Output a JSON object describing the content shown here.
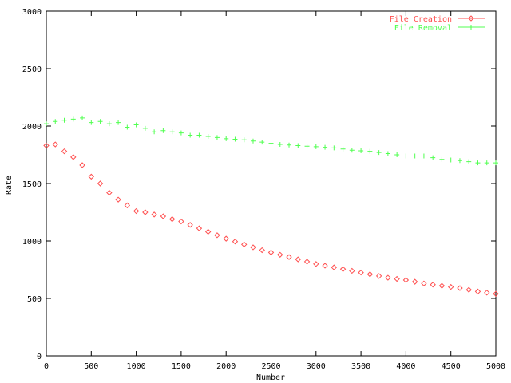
{
  "chart_data": {
    "type": "scatter",
    "title": "",
    "xlabel": "Number",
    "ylabel": "Rate",
    "xlim": [
      0,
      5000
    ],
    "ylim": [
      0,
      3000
    ],
    "xticks": [
      "0",
      "500",
      "1000",
      "1500",
      "2000",
      "2500",
      "3000",
      "3500",
      "4000",
      "4500",
      "5000"
    ],
    "yticks": [
      "0",
      "500",
      "1000",
      "1500",
      "2000",
      "2500",
      "3000"
    ],
    "legend_position": "top-right",
    "x": [
      0,
      100,
      200,
      300,
      400,
      500,
      600,
      700,
      800,
      900,
      1000,
      1100,
      1200,
      1300,
      1400,
      1500,
      1600,
      1700,
      1800,
      1900,
      2000,
      2100,
      2200,
      2300,
      2400,
      2500,
      2600,
      2700,
      2800,
      2900,
      3000,
      3100,
      3200,
      3300,
      3400,
      3500,
      3600,
      3700,
      3800,
      3900,
      4000,
      4100,
      4200,
      4300,
      4400,
      4500,
      4600,
      4700,
      4800,
      4900,
      5000
    ],
    "series": [
      {
        "name": "File Creation",
        "color": "#ff5050",
        "marker": "diamond",
        "values": [
          1830,
          1840,
          1780,
          1730,
          1660,
          1560,
          1500,
          1420,
          1360,
          1310,
          1260,
          1250,
          1230,
          1215,
          1190,
          1170,
          1140,
          1110,
          1080,
          1050,
          1020,
          995,
          970,
          945,
          920,
          900,
          880,
          860,
          840,
          820,
          800,
          785,
          770,
          755,
          740,
          725,
          710,
          695,
          680,
          670,
          660,
          645,
          630,
          620,
          610,
          600,
          590,
          575,
          560,
          550,
          540
        ]
      },
      {
        "name": "File Removal",
        "color": "#50ff50",
        "marker": "plus",
        "values": [
          2020,
          2040,
          2050,
          2060,
          2070,
          2030,
          2040,
          2020,
          2030,
          1990,
          2010,
          1980,
          1950,
          1960,
          1950,
          1940,
          1920,
          1920,
          1910,
          1900,
          1890,
          1885,
          1880,
          1870,
          1860,
          1850,
          1840,
          1835,
          1830,
          1825,
          1820,
          1815,
          1810,
          1800,
          1790,
          1785,
          1780,
          1770,
          1760,
          1750,
          1740,
          1740,
          1740,
          1725,
          1710,
          1705,
          1700,
          1690,
          1680,
          1680,
          1680
        ]
      }
    ]
  }
}
